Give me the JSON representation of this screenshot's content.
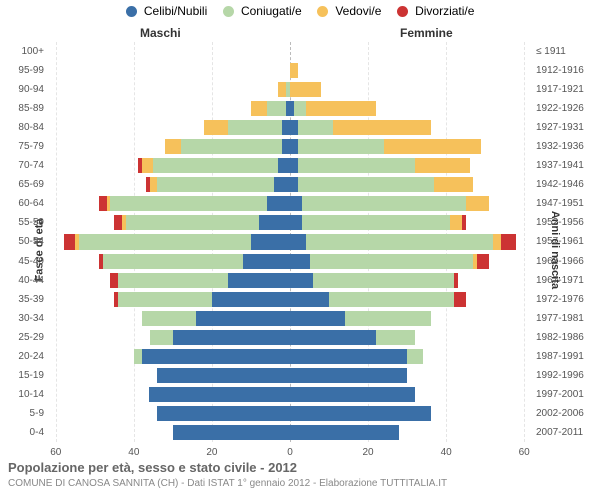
{
  "legend": [
    {
      "label": "Celibi/Nubili",
      "color": "#3a6fa7"
    },
    {
      "label": "Coniugati/e",
      "color": "#b6d7a8"
    },
    {
      "label": "Vedovi/e",
      "color": "#f6c15b"
    },
    {
      "label": "Divorziati/e",
      "color": "#cc3333"
    }
  ],
  "headers": {
    "male": "Maschi",
    "female": "Femmine"
  },
  "y_axis": {
    "left": "Fasce di età",
    "right": "Anni di nascita"
  },
  "x_axis": {
    "max": 62,
    "ticks": [
      60,
      40,
      20,
      0,
      20,
      40,
      60
    ]
  },
  "title": "Popolazione per età, sesso e stato civile - 2012",
  "subtitle": "COMUNE DI CANOSA SANNITA (CH) - Dati ISTAT 1° gennaio 2012 - Elaborazione TUTTITALIA.IT",
  "colors": {
    "celibi": "#3a6fa7",
    "coniugati": "#b6d7a8",
    "vedovi": "#f6c15b",
    "divorziati": "#cc3333",
    "grid": "#e5e5e5",
    "center": "#bbbbbb"
  },
  "rows": [
    {
      "age": "100+",
      "birth": "≤ 1911",
      "m": {
        "c": 0,
        "n": 0,
        "v": 0,
        "d": 0
      },
      "f": {
        "c": 0,
        "n": 0,
        "v": 0,
        "d": 0
      }
    },
    {
      "age": "95-99",
      "birth": "1912-1916",
      "m": {
        "c": 0,
        "n": 0,
        "v": 0,
        "d": 0
      },
      "f": {
        "c": 0,
        "n": 0,
        "v": 2,
        "d": 0
      }
    },
    {
      "age": "90-94",
      "birth": "1917-1921",
      "m": {
        "c": 0,
        "n": 1,
        "v": 2,
        "d": 0
      },
      "f": {
        "c": 0,
        "n": 0,
        "v": 8,
        "d": 0
      }
    },
    {
      "age": "85-89",
      "birth": "1922-1926",
      "m": {
        "c": 1,
        "n": 5,
        "v": 4,
        "d": 0
      },
      "f": {
        "c": 1,
        "n": 3,
        "v": 18,
        "d": 0
      }
    },
    {
      "age": "80-84",
      "birth": "1927-1931",
      "m": {
        "c": 2,
        "n": 14,
        "v": 6,
        "d": 0
      },
      "f": {
        "c": 2,
        "n": 9,
        "v": 25,
        "d": 0
      }
    },
    {
      "age": "75-79",
      "birth": "1932-1936",
      "m": {
        "c": 2,
        "n": 26,
        "v": 4,
        "d": 0
      },
      "f": {
        "c": 2,
        "n": 22,
        "v": 25,
        "d": 0
      }
    },
    {
      "age": "70-74",
      "birth": "1937-1941",
      "m": {
        "c": 3,
        "n": 32,
        "v": 3,
        "d": 1
      },
      "f": {
        "c": 2,
        "n": 30,
        "v": 14,
        "d": 0
      }
    },
    {
      "age": "65-69",
      "birth": "1942-1946",
      "m": {
        "c": 4,
        "n": 30,
        "v": 2,
        "d": 1
      },
      "f": {
        "c": 2,
        "n": 35,
        "v": 10,
        "d": 0
      }
    },
    {
      "age": "60-64",
      "birth": "1947-1951",
      "m": {
        "c": 6,
        "n": 40,
        "v": 1,
        "d": 2
      },
      "f": {
        "c": 3,
        "n": 42,
        "v": 6,
        "d": 0
      }
    },
    {
      "age": "55-59",
      "birth": "1952-1956",
      "m": {
        "c": 8,
        "n": 34,
        "v": 1,
        "d": 2
      },
      "f": {
        "c": 3,
        "n": 38,
        "v": 3,
        "d": 1
      }
    },
    {
      "age": "50-54",
      "birth": "1957-1961",
      "m": {
        "c": 10,
        "n": 44,
        "v": 1,
        "d": 3
      },
      "f": {
        "c": 4,
        "n": 48,
        "v": 2,
        "d": 4
      }
    },
    {
      "age": "45-49",
      "birth": "1962-1966",
      "m": {
        "c": 12,
        "n": 36,
        "v": 0,
        "d": 1
      },
      "f": {
        "c": 5,
        "n": 42,
        "v": 1,
        "d": 3
      }
    },
    {
      "age": "40-44",
      "birth": "1967-1971",
      "m": {
        "c": 16,
        "n": 28,
        "v": 0,
        "d": 2
      },
      "f": {
        "c": 6,
        "n": 36,
        "v": 0,
        "d": 1
      }
    },
    {
      "age": "35-39",
      "birth": "1972-1976",
      "m": {
        "c": 20,
        "n": 24,
        "v": 0,
        "d": 1
      },
      "f": {
        "c": 10,
        "n": 32,
        "v": 0,
        "d": 3
      }
    },
    {
      "age": "30-34",
      "birth": "1977-1981",
      "m": {
        "c": 24,
        "n": 14,
        "v": 0,
        "d": 0
      },
      "f": {
        "c": 14,
        "n": 22,
        "v": 0,
        "d": 0
      }
    },
    {
      "age": "25-29",
      "birth": "1982-1986",
      "m": {
        "c": 30,
        "n": 6,
        "v": 0,
        "d": 0
      },
      "f": {
        "c": 22,
        "n": 10,
        "v": 0,
        "d": 0
      }
    },
    {
      "age": "20-24",
      "birth": "1987-1991",
      "m": {
        "c": 38,
        "n": 2,
        "v": 0,
        "d": 0
      },
      "f": {
        "c": 30,
        "n": 4,
        "v": 0,
        "d": 0
      }
    },
    {
      "age": "15-19",
      "birth": "1992-1996",
      "m": {
        "c": 34,
        "n": 0,
        "v": 0,
        "d": 0
      },
      "f": {
        "c": 30,
        "n": 0,
        "v": 0,
        "d": 0
      }
    },
    {
      "age": "10-14",
      "birth": "1997-2001",
      "m": {
        "c": 36,
        "n": 0,
        "v": 0,
        "d": 0
      },
      "f": {
        "c": 32,
        "n": 0,
        "v": 0,
        "d": 0
      }
    },
    {
      "age": "5-9",
      "birth": "2002-2006",
      "m": {
        "c": 34,
        "n": 0,
        "v": 0,
        "d": 0
      },
      "f": {
        "c": 36,
        "n": 0,
        "v": 0,
        "d": 0
      }
    },
    {
      "age": "0-4",
      "birth": "2007-2011",
      "m": {
        "c": 30,
        "n": 0,
        "v": 0,
        "d": 0
      },
      "f": {
        "c": 28,
        "n": 0,
        "v": 0,
        "d": 0
      }
    }
  ]
}
